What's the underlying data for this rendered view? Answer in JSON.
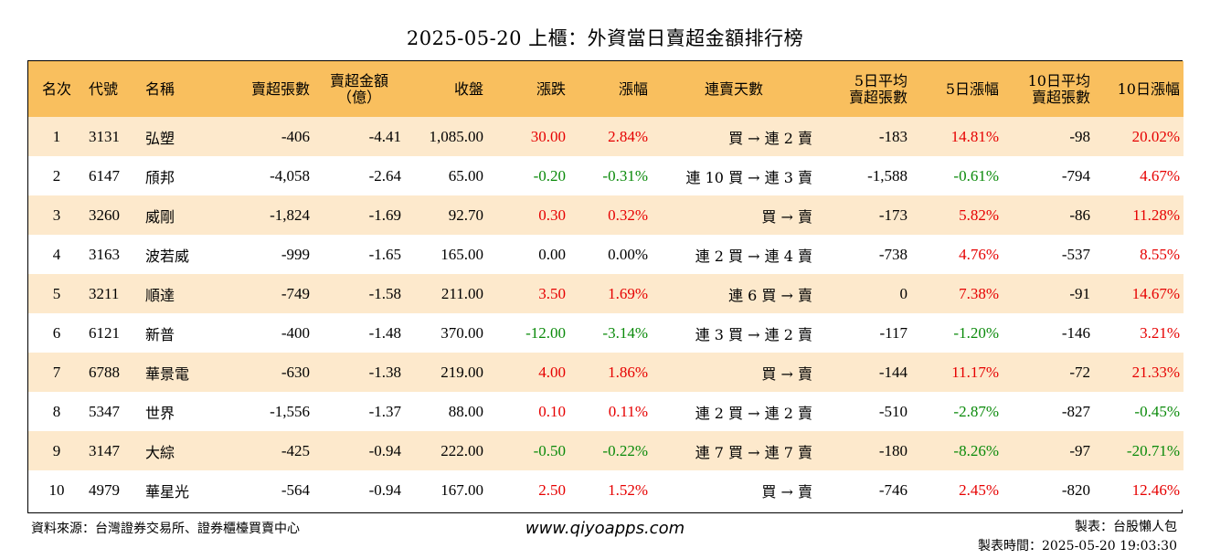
{
  "title": "2025-05-20 上櫃：外資當日賣超金額排行榜",
  "headers": {
    "rank": "名次",
    "code": "代號",
    "name": "名稱",
    "sell_shares": "賣超張數",
    "sell_amount_1": "賣超金額",
    "sell_amount_2": "（億）",
    "close": "收盤",
    "change": "漲跌",
    "change_pct": "漲幅",
    "streak": "連賣天數",
    "avg5_1": "5日平均",
    "avg5_2": "賣超張數",
    "pct5": "5日漲幅",
    "avg10_1": "10日平均",
    "avg10_2": "賣超張數",
    "pct10": "10日漲幅"
  },
  "rows": [
    {
      "rank": "1",
      "code": "3131",
      "name": "弘塑",
      "sell_shares": "-406",
      "sell_amount": "-4.41",
      "close": "1,085.00",
      "change": "30.00",
      "change_pct": "2.84%",
      "streak": "買 → 連 2 賣",
      "avg5": "-183",
      "pct5": "14.81%",
      "avg10": "-98",
      "pct10": "20.02%"
    },
    {
      "rank": "2",
      "code": "6147",
      "name": "頎邦",
      "sell_shares": "-4,058",
      "sell_amount": "-2.64",
      "close": "65.00",
      "change": "-0.20",
      "change_pct": "-0.31%",
      "streak": "連 10 買 → 連 3 賣",
      "avg5": "-1,588",
      "pct5": "-0.61%",
      "avg10": "-794",
      "pct10": "4.67%"
    },
    {
      "rank": "3",
      "code": "3260",
      "name": "威剛",
      "sell_shares": "-1,824",
      "sell_amount": "-1.69",
      "close": "92.70",
      "change": "0.30",
      "change_pct": "0.32%",
      "streak": "買 → 賣",
      "avg5": "-173",
      "pct5": "5.82%",
      "avg10": "-86",
      "pct10": "11.28%"
    },
    {
      "rank": "4",
      "code": "3163",
      "name": "波若威",
      "sell_shares": "-999",
      "sell_amount": "-1.65",
      "close": "165.00",
      "change": "0.00",
      "change_pct": "0.00%",
      "streak": "連 2 買 → 連 4 賣",
      "avg5": "-738",
      "pct5": "4.76%",
      "avg10": "-537",
      "pct10": "8.55%"
    },
    {
      "rank": "5",
      "code": "3211",
      "name": "順達",
      "sell_shares": "-749",
      "sell_amount": "-1.58",
      "close": "211.00",
      "change": "3.50",
      "change_pct": "1.69%",
      "streak": "連 6 買 → 賣",
      "avg5": "0",
      "pct5": "7.38%",
      "avg10": "-91",
      "pct10": "14.67%"
    },
    {
      "rank": "6",
      "code": "6121",
      "name": "新普",
      "sell_shares": "-400",
      "sell_amount": "-1.48",
      "close": "370.00",
      "change": "-12.00",
      "change_pct": "-3.14%",
      "streak": "連 3 買 → 連 2 賣",
      "avg5": "-117",
      "pct5": "-1.20%",
      "avg10": "-146",
      "pct10": "3.21%"
    },
    {
      "rank": "7",
      "code": "6788",
      "name": "華景電",
      "sell_shares": "-630",
      "sell_amount": "-1.38",
      "close": "219.00",
      "change": "4.00",
      "change_pct": "1.86%",
      "streak": "買 → 賣",
      "avg5": "-144",
      "pct5": "11.17%",
      "avg10": "-72",
      "pct10": "21.33%"
    },
    {
      "rank": "8",
      "code": "5347",
      "name": "世界",
      "sell_shares": "-1,556",
      "sell_amount": "-1.37",
      "close": "88.00",
      "change": "0.10",
      "change_pct": "0.11%",
      "streak": "連 2 買 → 連 2 賣",
      "avg5": "-510",
      "pct5": "-2.87%",
      "avg10": "-827",
      "pct10": "-0.45%"
    },
    {
      "rank": "9",
      "code": "3147",
      "name": "大綜",
      "sell_shares": "-425",
      "sell_amount": "-0.94",
      "close": "222.00",
      "change": "-0.50",
      "change_pct": "-0.22%",
      "streak": "連 7 買 → 連 7 賣",
      "avg5": "-180",
      "pct5": "-8.26%",
      "avg10": "-97",
      "pct10": "-20.71%"
    },
    {
      "rank": "10",
      "code": "4979",
      "name": "華星光",
      "sell_shares": "-564",
      "sell_amount": "-0.94",
      "close": "167.00",
      "change": "2.50",
      "change_pct": "1.52%",
      "streak": "買 → 賣",
      "avg5": "-746",
      "pct5": "2.45%",
      "avg10": "-820",
      "pct10": "12.46%"
    }
  ],
  "footer": {
    "source": "資料來源：台灣證券交易所、證券櫃檯買賣中心",
    "website": "www.qiyoapps.com",
    "maker": "製表：台股懶人包",
    "made_time": "製表時間：2025-05-20 19:03:30"
  },
  "colors": {
    "header_bg": "#f9bf5e",
    "odd_row_bg": "#fde9cc",
    "up": "#e60000",
    "down": "#0a8a0a"
  }
}
